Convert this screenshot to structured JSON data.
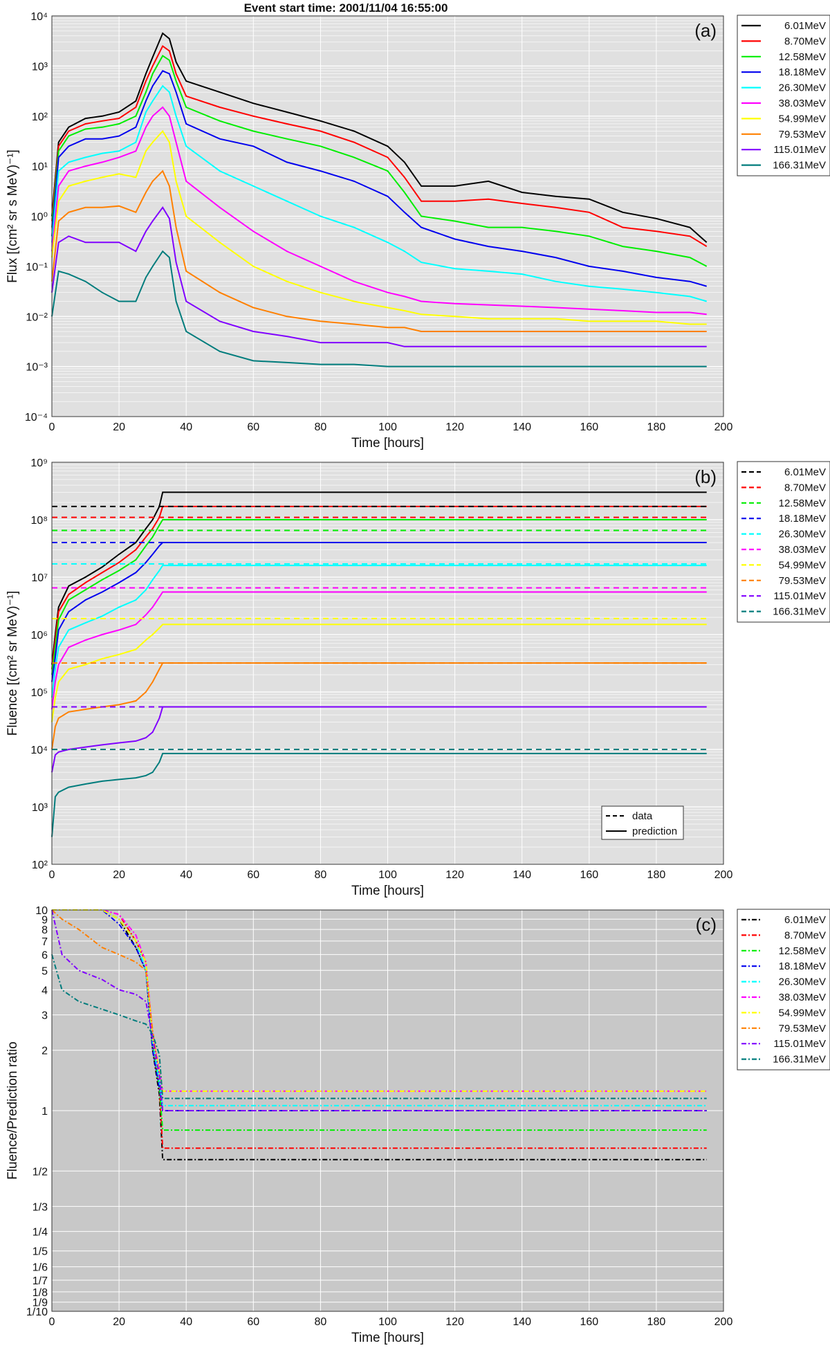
{
  "figure": {
    "title": "Event start time: 2001/11/04 16:55:00"
  },
  "series_colors": {
    "6.01MeV": "#000000",
    "8.70MeV": "#ff0000",
    "12.58MeV": "#00ee00",
    "18.18MeV": "#0000ee",
    "26.30MeV": "#00ffff",
    "38.03MeV": "#ff00ff",
    "54.99MeV": "#ffff00",
    "79.53MeV": "#ff8000",
    "115.01MeV": "#8000ff",
    "166.31MeV": "#007c7c"
  },
  "chart_data": [
    {
      "type": "line",
      "panel": "(a)",
      "xlabel": "Time [hours]",
      "ylabel": "Flux [(cm² sr s MeV)⁻¹]",
      "xlim": [
        0,
        200
      ],
      "ylim": [
        0.0001,
        10000
      ],
      "yscale": "log",
      "xticks": [
        "0",
        "20",
        "40",
        "60",
        "80",
        "100",
        "120",
        "140",
        "160",
        "180",
        "200"
      ],
      "yticks": [
        "10⁴",
        "10³",
        "10²",
        "10¹",
        "10⁰",
        "10⁻¹",
        "10⁻²",
        "10⁻³",
        "10⁻⁴"
      ],
      "grid": true,
      "legend_placement": "outside-right",
      "legend": [
        "6.01MeV",
        "8.70MeV",
        "12.58MeV",
        "18.18MeV",
        "26.30MeV",
        "38.03MeV",
        "54.99MeV",
        "79.53MeV",
        "115.01MeV",
        "166.31MeV"
      ],
      "x": [
        0,
        2,
        5,
        10,
        15,
        20,
        25,
        28,
        30,
        33,
        35,
        37,
        40,
        50,
        60,
        70,
        80,
        90,
        100,
        105,
        110,
        120,
        130,
        140,
        150,
        160,
        170,
        180,
        190,
        195
      ],
      "series": [
        {
          "name": "6.01MeV",
          "values": [
            1,
            30,
            60,
            90,
            100,
            120,
            200,
            700,
            1500,
            4500,
            3500,
            1200,
            500,
            300,
            180,
            120,
            80,
            50,
            25,
            12,
            4,
            4,
            5,
            3,
            2.5,
            2.2,
            1.2,
            0.9,
            0.6,
            0.3
          ]
        },
        {
          "name": "8.70MeV",
          "values": [
            0.8,
            25,
            50,
            70,
            80,
            90,
            150,
            500,
            1000,
            2500,
            2000,
            700,
            250,
            150,
            100,
            70,
            50,
            30,
            15,
            6,
            2,
            2,
            2.2,
            1.8,
            1.5,
            1.2,
            0.6,
            0.5,
            0.4,
            0.25
          ]
        },
        {
          "name": "12.58MeV",
          "values": [
            0.6,
            20,
            40,
            55,
            60,
            70,
            100,
            300,
            700,
            1600,
            1300,
            500,
            150,
            80,
            50,
            35,
            25,
            15,
            8,
            3,
            1,
            0.8,
            0.6,
            0.6,
            0.5,
            0.4,
            0.25,
            0.2,
            0.15,
            0.1
          ]
        },
        {
          "name": "18.18MeV",
          "values": [
            0.4,
            15,
            25,
            35,
            35,
            40,
            60,
            200,
            400,
            800,
            700,
            300,
            70,
            35,
            25,
            12,
            8,
            5,
            2.5,
            1.2,
            0.6,
            0.35,
            0.25,
            0.2,
            0.15,
            0.1,
            0.08,
            0.06,
            0.05,
            0.04
          ]
        },
        {
          "name": "26.30MeV",
          "values": [
            0.3,
            8,
            12,
            15,
            18,
            20,
            30,
            120,
            200,
            400,
            300,
            100,
            25,
            8,
            4,
            2,
            1,
            0.6,
            0.3,
            0.2,
            0.12,
            0.09,
            0.08,
            0.07,
            0.05,
            0.04,
            0.035,
            0.03,
            0.025,
            0.02
          ]
        },
        {
          "name": "38.03MeV",
          "values": [
            0.2,
            4,
            8,
            10,
            12,
            15,
            20,
            60,
            100,
            150,
            100,
            30,
            5,
            1.5,
            0.5,
            0.2,
            0.1,
            0.05,
            0.03,
            0.025,
            0.02,
            0.018,
            0.017,
            0.016,
            0.015,
            0.014,
            0.013,
            0.012,
            0.012,
            0.011
          ]
        },
        {
          "name": "54.99MeV",
          "values": [
            0.15,
            2,
            4,
            5,
            6,
            7,
            6,
            20,
            30,
            50,
            30,
            5,
            1,
            0.3,
            0.1,
            0.05,
            0.03,
            0.02,
            0.015,
            0.013,
            0.011,
            0.01,
            0.009,
            0.009,
            0.009,
            0.008,
            0.008,
            0.008,
            0.007,
            0.007
          ]
        },
        {
          "name": "79.53MeV",
          "values": [
            0.05,
            0.8,
            1.2,
            1.5,
            1.5,
            1.6,
            1.2,
            3,
            5,
            8,
            4,
            0.6,
            0.08,
            0.03,
            0.015,
            0.01,
            0.008,
            0.007,
            0.006,
            0.006,
            0.005,
            0.005,
            0.005,
            0.005,
            0.005,
            0.005,
            0.005,
            0.005,
            0.005,
            0.005
          ]
        },
        {
          "name": "115.01MeV",
          "values": [
            0.03,
            0.3,
            0.4,
            0.3,
            0.3,
            0.3,
            0.2,
            0.5,
            0.8,
            1.5,
            0.9,
            0.12,
            0.02,
            0.008,
            0.005,
            0.004,
            0.003,
            0.003,
            0.003,
            0.0025,
            0.0025,
            0.0025,
            0.0025,
            0.0025,
            0.0025,
            0.0025,
            0.0025,
            0.0025,
            0.0025,
            0.0025
          ]
        },
        {
          "name": "166.31MeV",
          "values": [
            0.01,
            0.08,
            0.07,
            0.05,
            0.03,
            0.02,
            0.02,
            0.06,
            0.1,
            0.2,
            0.15,
            0.02,
            0.005,
            0.002,
            0.0013,
            0.0012,
            0.0011,
            0.0011,
            0.001,
            0.001,
            0.001,
            0.001,
            0.001,
            0.001,
            0.001,
            0.001,
            0.001,
            0.001,
            0.001,
            0.001
          ]
        }
      ]
    },
    {
      "type": "line",
      "panel": "(b)",
      "xlabel": "Time [hours]",
      "ylabel": "Fluence [(cm² sr MeV)⁻¹]",
      "xlim": [
        0,
        200
      ],
      "ylim": [
        100,
        1000000000
      ],
      "yscale": "log",
      "xticks": [
        "0",
        "20",
        "40",
        "60",
        "80",
        "100",
        "120",
        "140",
        "160",
        "180",
        "200"
      ],
      "yticks": [
        "10⁹",
        "10⁸",
        "10⁷",
        "10⁶",
        "10⁵",
        "10⁴",
        "10³",
        "10²"
      ],
      "grid": true,
      "legend_placement": "outside-right",
      "legend": [
        "6.01MeV",
        "8.70MeV",
        "12.58MeV",
        "18.18MeV",
        "26.30MeV",
        "38.03MeV",
        "54.99MeV",
        "79.53MeV",
        "115.01MeV",
        "166.31MeV"
      ],
      "style_legend": {
        "placement": "bottom-right",
        "entries": [
          "data",
          "prediction"
        ]
      },
      "data_fluence": [
        {
          "name": "6.01MeV",
          "value": 170000000
        },
        {
          "name": "8.70MeV",
          "value": 110000000
        },
        {
          "name": "12.58MeV",
          "value": 65000000
        },
        {
          "name": "18.18MeV",
          "value": 40000000
        },
        {
          "name": "26.30MeV",
          "value": 17000000
        },
        {
          "name": "38.03MeV",
          "value": 6500000
        },
        {
          "name": "54.99MeV",
          "value": 1900000
        },
        {
          "name": "79.53MeV",
          "value": 320000
        },
        {
          "name": "115.01MeV",
          "value": 55000
        },
        {
          "name": "166.31MeV",
          "value": 10000
        }
      ],
      "x": [
        0,
        1,
        2,
        5,
        10,
        15,
        20,
        25,
        28,
        30,
        32,
        33,
        195
      ],
      "series": [
        {
          "name": "6.01MeV",
          "values": [
            300000,
            1000000,
            3000000,
            7000000,
            10000000,
            15000000,
            25000000,
            40000000,
            70000000,
            100000000,
            170000000,
            300000000,
            300000000
          ]
        },
        {
          "name": "8.70MeV",
          "values": [
            250000,
            800000,
            2500000,
            5000000,
            8000000,
            12000000,
            18000000,
            30000000,
            50000000,
            70000000,
            110000000,
            170000000,
            170000000
          ]
        },
        {
          "name": "12.58MeV",
          "values": [
            200000,
            600000,
            1800000,
            4000000,
            6000000,
            9000000,
            13000000,
            20000000,
            35000000,
            50000000,
            80000000,
            100000000,
            100000000
          ]
        },
        {
          "name": "18.18MeV",
          "values": [
            150000,
            400000,
            1200000,
            2500000,
            4000000,
            5500000,
            8000000,
            12000000,
            18000000,
            25000000,
            35000000,
            40000000,
            40000000
          ]
        },
        {
          "name": "26.30MeV",
          "values": [
            80000,
            250000,
            600000,
            1200000,
            1600000,
            2100000,
            3000000,
            4000000,
            6000000,
            9000000,
            13000000,
            16000000,
            16000000
          ]
        },
        {
          "name": "38.03MeV",
          "values": [
            50000,
            150000,
            300000,
            600000,
            800000,
            1000000,
            1200000,
            1500000,
            2200000,
            3000000,
            4500000,
            5500000,
            5500000
          ]
        },
        {
          "name": "54.99MeV",
          "values": [
            30000,
            80000,
            150000,
            250000,
            300000,
            380000,
            450000,
            550000,
            800000,
            1000000,
            1300000,
            1500000,
            1500000
          ]
        },
        {
          "name": "79.53MeV",
          "values": [
            10000,
            25000,
            35000,
            45000,
            50000,
            55000,
            60000,
            70000,
            100000,
            150000,
            250000,
            320000,
            320000
          ]
        },
        {
          "name": "115.01MeV",
          "values": [
            4000,
            8000,
            9000,
            10000,
            11000,
            12000,
            13000,
            14000,
            16000,
            20000,
            35000,
            55000,
            55000
          ]
        },
        {
          "name": "166.31MeV",
          "values": [
            300,
            1500,
            1800,
            2200,
            2500,
            2800,
            3000,
            3200,
            3500,
            4000,
            6000,
            8500,
            8500
          ]
        }
      ]
    },
    {
      "type": "line",
      "panel": "(c)",
      "xlabel": "Time [hours]",
      "ylabel": "Fluence/Prediction ratio",
      "xlim": [
        0,
        200
      ],
      "ylim": [
        0.1,
        10
      ],
      "yscale": "log",
      "xticks": [
        "0",
        "20",
        "40",
        "60",
        "80",
        "100",
        "120",
        "140",
        "160",
        "180",
        "200"
      ],
      "ytick_values": [
        10,
        9,
        8,
        7,
        6,
        5,
        4,
        3,
        2,
        1,
        0.5,
        0.3333,
        0.25,
        0.2,
        0.1667,
        0.1429,
        0.125,
        0.1111,
        0.1
      ],
      "yticks": [
        "10",
        "9",
        "8",
        "7",
        "6",
        "5",
        "4",
        "3",
        "2",
        "1",
        "1/2",
        "1/3",
        "1/4",
        "1/5",
        "1/6",
        "1/7",
        "1/8",
        "1/9",
        "1/10"
      ],
      "grid": true,
      "legend_placement": "outside-right",
      "legend": [
        "6.01MeV",
        "8.70MeV",
        "12.58MeV",
        "18.18MeV",
        "26.30MeV",
        "38.03MeV",
        "54.99MeV",
        "79.53MeV",
        "115.01MeV",
        "166.31MeV"
      ],
      "x": [
        0,
        3,
        8,
        15,
        20,
        25,
        28,
        30,
        32,
        33,
        195
      ],
      "series": [
        {
          "name": "6.01MeV",
          "values": [
            10,
            10,
            10,
            10,
            9,
            6.5,
            5,
            2,
            1.2,
            0.57,
            0.57
          ]
        },
        {
          "name": "8.70MeV",
          "values": [
            10,
            10,
            10,
            10,
            9.5,
            7,
            5.5,
            2.2,
            1.3,
            0.65,
            0.65
          ]
        },
        {
          "name": "12.58MeV",
          "values": [
            10,
            10,
            10,
            10,
            9,
            7,
            5.5,
            2.2,
            1.3,
            0.8,
            0.8
          ]
        },
        {
          "name": "18.18MeV",
          "values": [
            10,
            10,
            10,
            10,
            8.5,
            6.5,
            5,
            2,
            1.3,
            1.0,
            1.0
          ]
        },
        {
          "name": "26.30MeV",
          "values": [
            10,
            10,
            10,
            10,
            9,
            7,
            5,
            2.2,
            1.4,
            1.06,
            1.06
          ]
        },
        {
          "name": "38.03MeV",
          "values": [
            10,
            10,
            10,
            10,
            9.5,
            7.5,
            5.5,
            2.4,
            1.6,
            1.25,
            1.25
          ]
        },
        {
          "name": "54.99MeV",
          "values": [
            10,
            10,
            10,
            10,
            9,
            7,
            5.5,
            2.3,
            1.6,
            1.25,
            1.25
          ]
        },
        {
          "name": "79.53MeV",
          "values": [
            10,
            9,
            8,
            6.5,
            6,
            5.5,
            5,
            2.5,
            1.5,
            1.0,
            1.0
          ]
        },
        {
          "name": "115.01MeV",
          "values": [
            10,
            6,
            5,
            4.5,
            4,
            3.8,
            3.5,
            2.3,
            1.5,
            1.0,
            1.0
          ]
        },
        {
          "name": "166.31MeV",
          "values": [
            6,
            4,
            3.5,
            3.2,
            3,
            2.8,
            2.7,
            2.4,
            1.9,
            1.15,
            1.15
          ]
        }
      ]
    }
  ]
}
